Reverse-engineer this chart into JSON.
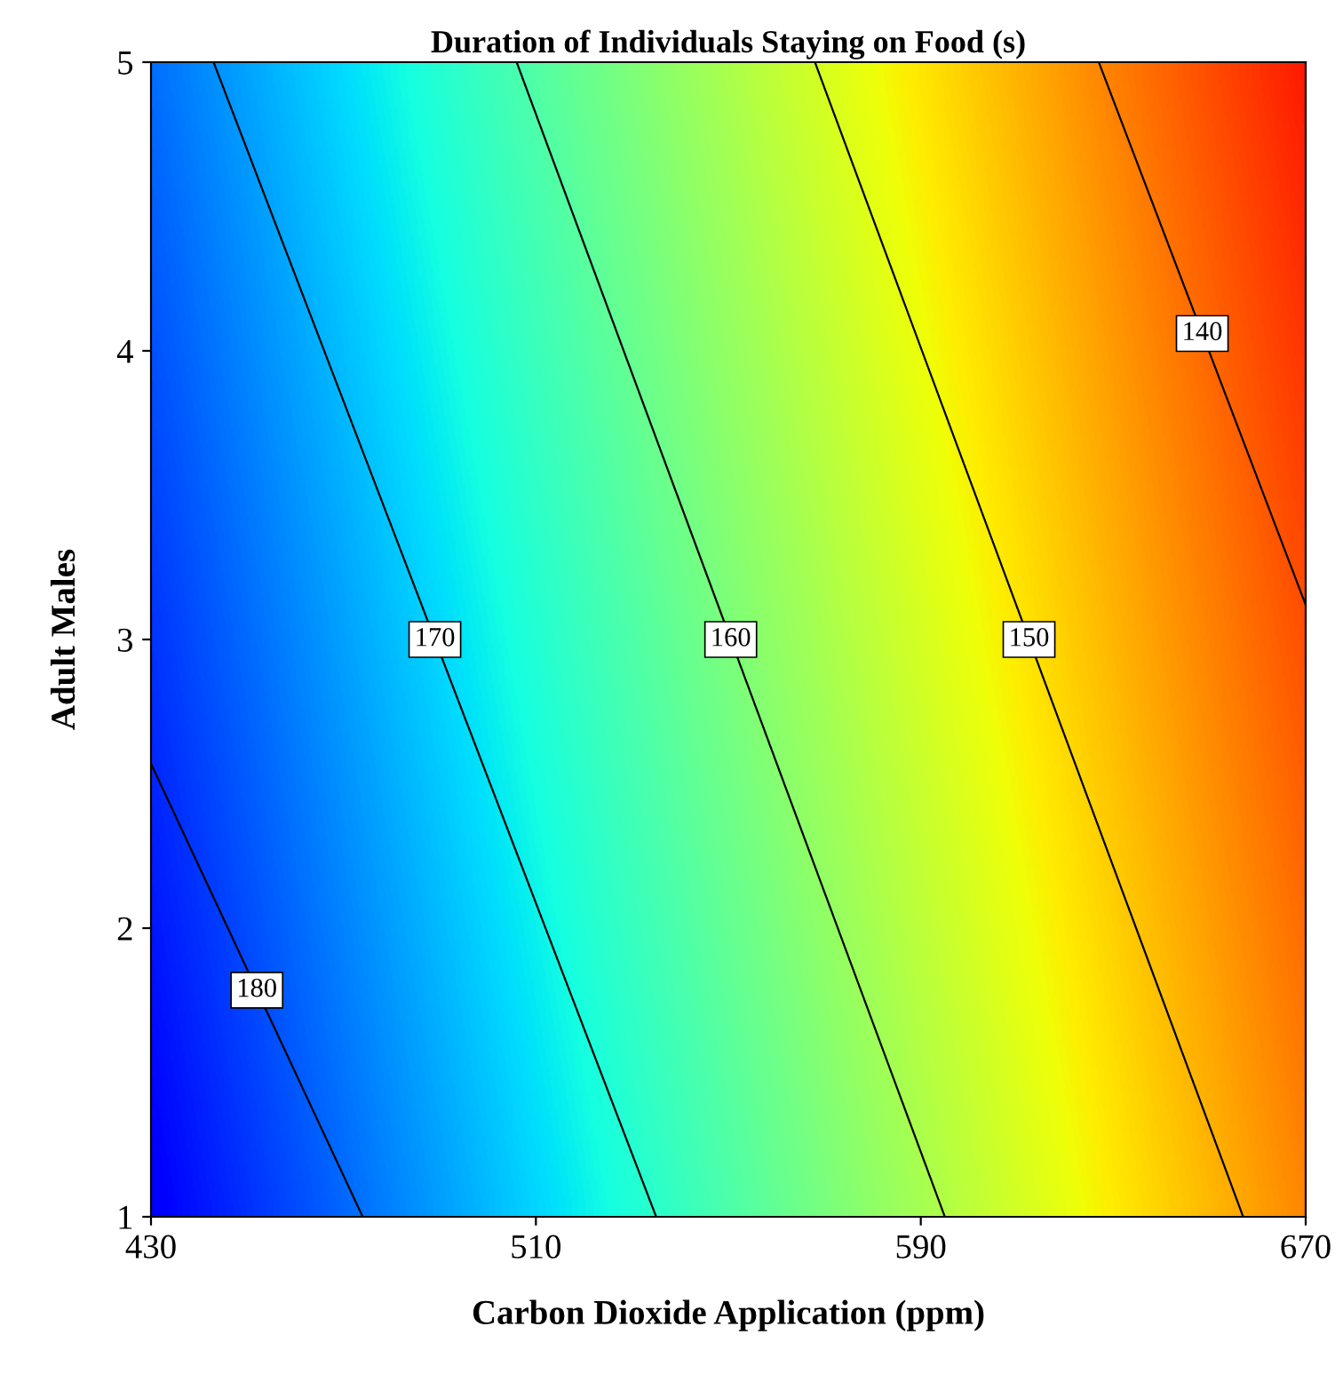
{
  "chart_data": {
    "type": "line",
    "title": "Duration of Individuals Staying on Food (s)",
    "xlabel": "Carbon Dioxide Application (ppm)",
    "ylabel": "Adult Males",
    "xlim": [
      430,
      670
    ],
    "ylim": [
      1,
      5
    ],
    "xticks": [
      430,
      510,
      590,
      670
    ],
    "yticks": [
      1,
      2,
      3,
      4,
      5
    ],
    "grid": false,
    "legend": false,
    "marker": "none",
    "line_style": "solid",
    "series": [
      {
        "name": "180",
        "color": "#000000",
        "x": [
          430,
          474
        ],
        "values": [
          2.57,
          1
        ]
      },
      {
        "name": "170",
        "color": "#000000",
        "x": [
          443,
          535
        ],
        "values": [
          5,
          1
        ]
      },
      {
        "name": "160",
        "color": "#000000",
        "x": [
          506,
          595
        ],
        "values": [
          5,
          1
        ]
      },
      {
        "name": "150",
        "color": "#000000",
        "x": [
          568,
          657
        ],
        "values": [
          5,
          1
        ]
      },
      {
        "name": "140",
        "color": "#000000",
        "x": [
          627,
          670
        ],
        "values": [
          5,
          3.12
        ]
      }
    ]
  }
}
